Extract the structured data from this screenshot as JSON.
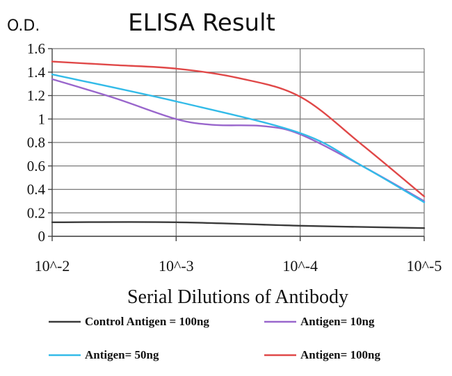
{
  "chart_data": {
    "type": "line",
    "title": "ELISA Result",
    "ylabel": "O.D.",
    "xlabel": "Serial Dilutions of Antibody",
    "categories": [
      "10^-2",
      "10^-3",
      "10^-4",
      "10^-5"
    ],
    "ylim": [
      0,
      1.6
    ],
    "yticks": [
      "0",
      "0.2",
      "0.4",
      "0.6",
      "0.8",
      "1",
      "1.2",
      "1.4",
      "1.6"
    ],
    "grid": true,
    "legend_position": "bottom",
    "series": [
      {
        "name": "Control Antigen = 100ng",
        "color": "#3a3a3a",
        "points": [
          [
            0,
            0.12
          ],
          [
            1,
            0.12
          ],
          [
            2,
            0.09
          ],
          [
            3,
            0.07
          ]
        ]
      },
      {
        "name": "Antigen= 10ng",
        "color": "#9966cc",
        "points": [
          [
            0,
            1.34
          ],
          [
            0.5,
            1.18
          ],
          [
            1,
            1.0
          ],
          [
            1.3,
            0.95
          ],
          [
            1.7,
            0.94
          ],
          [
            2,
            0.87
          ],
          [
            2.5,
            0.6
          ],
          [
            3,
            0.3
          ]
        ]
      },
      {
        "name": "Antigen= 50ng",
        "color": "#33bbe8",
        "points": [
          [
            0,
            1.38
          ],
          [
            1,
            1.15
          ],
          [
            2,
            0.88
          ],
          [
            2.5,
            0.6
          ],
          [
            3,
            0.29
          ]
        ]
      },
      {
        "name": "Antigen= 100ng",
        "color": "#e04848",
        "points": [
          [
            0,
            1.49
          ],
          [
            0.5,
            1.46
          ],
          [
            1,
            1.43
          ],
          [
            1.5,
            1.35
          ],
          [
            2,
            1.19
          ],
          [
            2.5,
            0.78
          ],
          [
            3,
            0.34
          ]
        ]
      }
    ]
  }
}
